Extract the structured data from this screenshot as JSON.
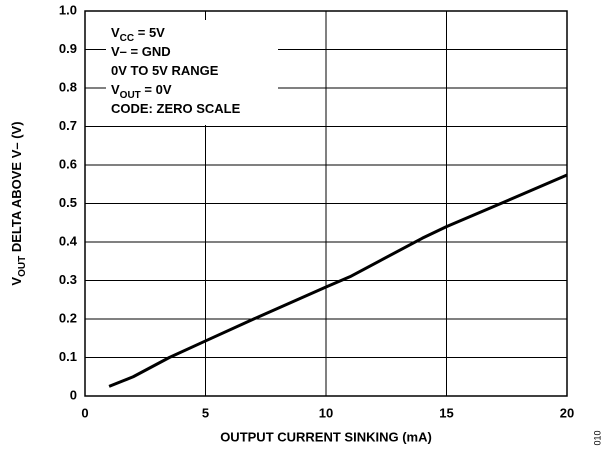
{
  "chart_data": {
    "type": "line",
    "x": [
      1,
      2,
      3.5,
      5,
      7,
      10,
      11,
      14,
      15,
      18,
      20
    ],
    "series": [
      {
        "name": "VOUT",
        "color": "#000000",
        "values": [
          0.025,
          0.05,
          0.1,
          0.143,
          0.2,
          0.283,
          0.31,
          0.41,
          0.44,
          0.52,
          0.574
        ]
      }
    ],
    "xlim": [
      0,
      20
    ],
    "xticks": [
      0,
      5,
      10,
      15,
      20
    ],
    "ylim": [
      0,
      1
    ],
    "yticks": [
      0,
      0.1,
      0.2,
      0.3,
      0.4,
      0.5,
      0.6,
      0.7,
      0.8,
      0.9,
      {
        "value": 1,
        "label": "1.0"
      }
    ],
    "grid": true,
    "x_label": "OUTPUT CURRENT SINKING (mA)",
    "y_label": [
      {
        "text": "V"
      },
      {
        "text": "OUT",
        "sub": true
      },
      {
        "text": " DELTA ABOVE V– (V)"
      }
    ],
    "annotation": [
      [
        {
          "text": "V"
        },
        {
          "text": "CC",
          "sub": true
        },
        {
          "text": " = 5V"
        }
      ],
      [
        {
          "text": "V– = GND"
        }
      ],
      [
        {
          "text": "0V TO 5V RANGE"
        }
      ],
      [
        {
          "text": "V"
        },
        {
          "text": "OUT",
          "sub": true
        },
        {
          "text": " = 0V"
        }
      ],
      [
        {
          "text": "CODE: ZERO SCALE"
        }
      ]
    ],
    "figure_id": "010"
  }
}
